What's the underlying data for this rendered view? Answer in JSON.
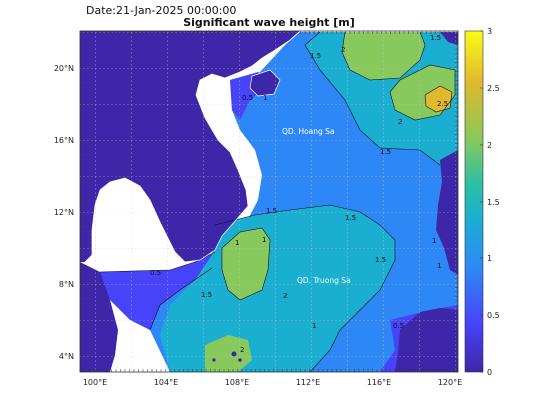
{
  "date_label": "Date:21-Jan-2025 00:00:00",
  "title": "Significant wave height [m]",
  "map": {
    "lon_ticks": [
      "100°E",
      "104°E",
      "108°E",
      "112°E",
      "116°E",
      "120°E"
    ],
    "lat_ticks": [
      "20°N",
      "16°N",
      "12°N",
      "8°N",
      "4°N"
    ],
    "places": [
      {
        "name": "QD. Hoang Sa"
      },
      {
        "name": "QD. Truong Sa"
      }
    ],
    "contour_labels": [
      "0.5",
      "1",
      "1.5",
      "1.5",
      "2",
      "2",
      "2.5",
      "1.5",
      "1.5",
      "1.5",
      "1",
      "1",
      "2",
      "1.5",
      "1",
      "0.5",
      "1",
      "1.5",
      "0.5",
      "1",
      "2"
    ]
  },
  "colorbar": {
    "ticks": [
      "3",
      "2.5",
      "2",
      "1.5",
      "1",
      "0.5",
      "0"
    ],
    "min": 0,
    "max": 3,
    "colors": [
      "#3e26a8",
      "#4743f8",
      "#2e87f7",
      "#1aafd1",
      "#2ac0a4",
      "#87c95c",
      "#e1b92c",
      "#f9fb15"
    ]
  }
}
